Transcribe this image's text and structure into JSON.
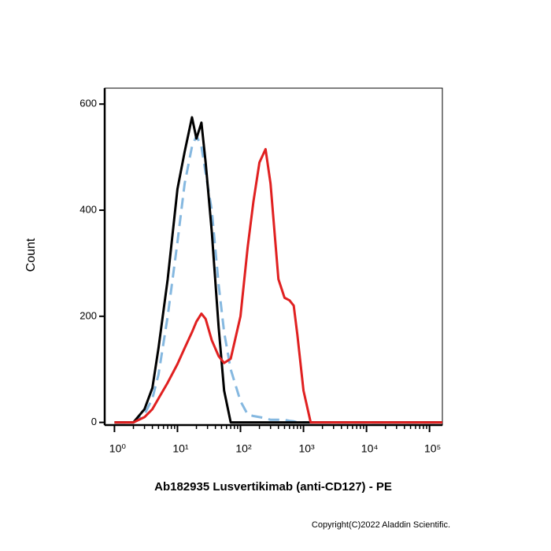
{
  "chart_data": {
    "type": "line",
    "xlabel": "Ab182935 Lusvertikimab (anti-CD127) - PE",
    "ylabel": "Count",
    "footer": "Copyright(C)2022 Aladdin Scientific.",
    "xscale": "log",
    "xlim": [
      0.7,
      160000
    ],
    "ylim": [
      -5,
      630
    ],
    "xticks": [
      {
        "value": 1,
        "label": "10⁰"
      },
      {
        "value": 10,
        "label": "10¹"
      },
      {
        "value": 100,
        "label": "10²"
      },
      {
        "value": 1000,
        "label": "10³"
      },
      {
        "value": 10000,
        "label": "10⁴"
      },
      {
        "value": 100000,
        "label": "10⁵"
      }
    ],
    "xminorticks": [
      2,
      3,
      4,
      5,
      6,
      7,
      8,
      9,
      20,
      30,
      40,
      50,
      60,
      70,
      80,
      90,
      200,
      300,
      400,
      500,
      600,
      700,
      800,
      900,
      2000,
      3000,
      4000,
      5000,
      6000,
      7000,
      8000,
      9000,
      20000,
      30000,
      40000,
      50000,
      60000,
      70000,
      80000,
      90000
    ],
    "yticks": [
      0,
      200,
      400,
      600
    ],
    "x": [
      1,
      1.5,
      2,
      3,
      4,
      5,
      7,
      10,
      13,
      17,
      20,
      24,
      28,
      35,
      45,
      55,
      70,
      100,
      130,
      160,
      200,
      250,
      300,
      400,
      500,
      600,
      700,
      800,
      1000,
      1300,
      2000,
      5000,
      20000,
      100000,
      160000
    ],
    "series": [
      {
        "color": "#85b8e0",
        "dashed": true,
        "values": [
          0,
          0,
          0,
          15,
          45,
          90,
          200,
          340,
          450,
          520,
          540,
          520,
          470,
          400,
          260,
          170,
          100,
          40,
          15,
          12,
          10,
          8,
          5,
          5,
          5,
          3,
          2,
          0,
          0,
          0,
          0,
          0,
          0,
          0,
          0
        ]
      },
      {
        "color": "#000000",
        "dashed": false,
        "values": [
          0,
          0,
          0,
          25,
          65,
          140,
          270,
          440,
          510,
          575,
          535,
          565,
          490,
          360,
          180,
          60,
          0,
          0,
          0,
          0,
          0,
          0,
          0,
          0,
          0,
          0,
          0,
          0,
          0,
          0,
          0,
          0,
          0,
          0,
          0
        ]
      },
      {
        "color": "#e02020",
        "dashed": false,
        "values": [
          0,
          0,
          0,
          10,
          25,
          45,
          75,
          110,
          140,
          170,
          190,
          205,
          195,
          155,
          125,
          112,
          120,
          200,
          330,
          415,
          490,
          515,
          450,
          270,
          235,
          230,
          220,
          165,
          60,
          0,
          0,
          0,
          0,
          0,
          0
        ]
      }
    ]
  }
}
